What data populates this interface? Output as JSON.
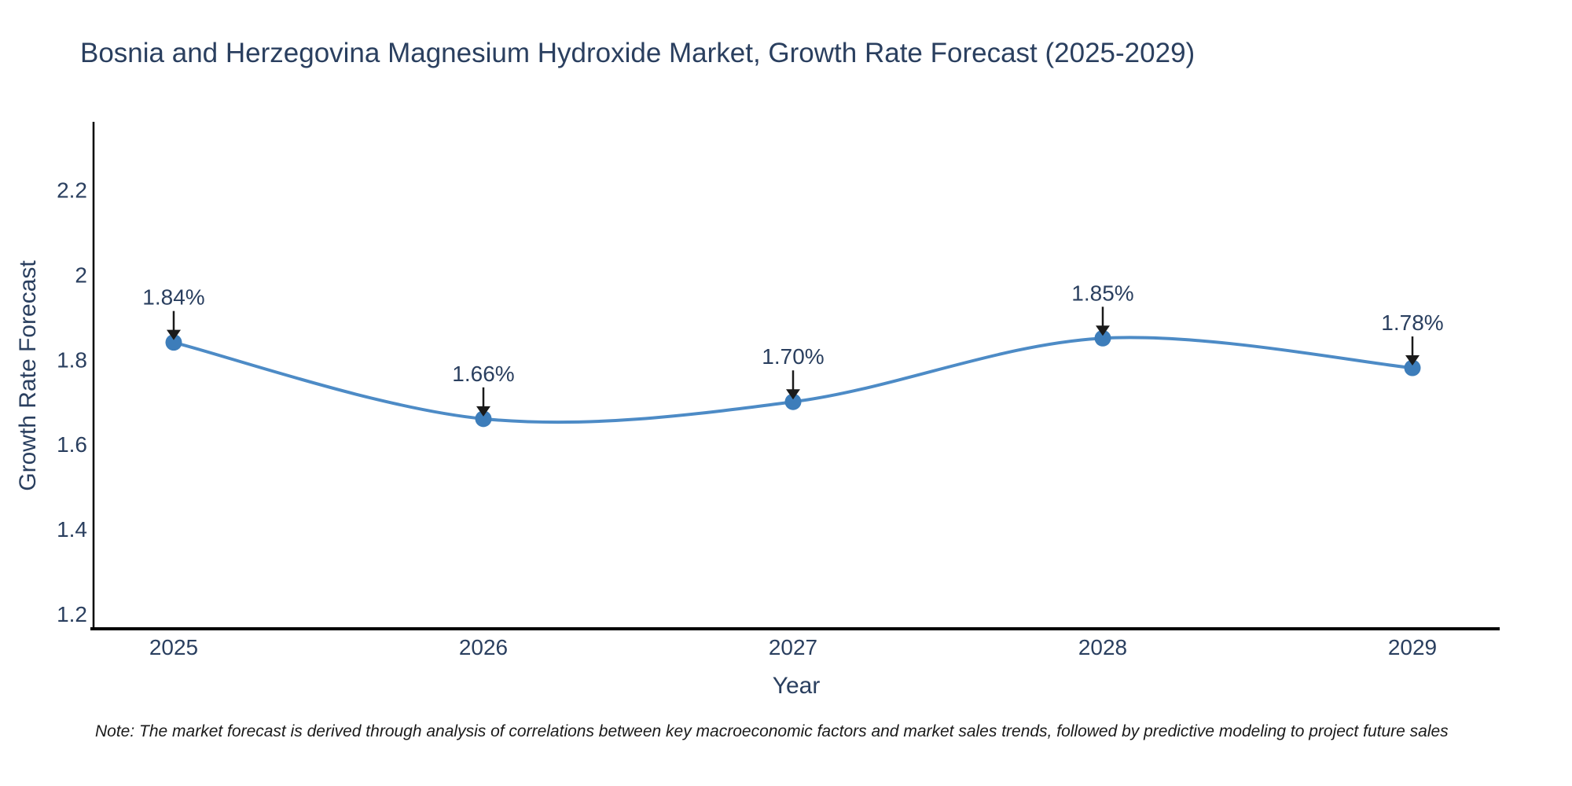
{
  "title": "Bosnia and Herzegovina Magnesium Hydroxide Market, Growth Rate Forecast (2025-2029)",
  "note": "Note: The market forecast is derived through analysis of correlations between key macroeconomic factors and market sales trends, followed by predictive modeling to project future sales",
  "chart_data": {
    "type": "line",
    "title": "Bosnia and Herzegovina Magnesium Hydroxide Market, Growth Rate Forecast (2025-2029)",
    "xlabel": "Year",
    "ylabel": "Growth Rate Forecast",
    "categories": [
      "2025",
      "2026",
      "2027",
      "2028",
      "2029"
    ],
    "series": [
      {
        "name": "Growth Rate Forecast",
        "values": [
          1.84,
          1.66,
          1.7,
          1.85,
          1.78
        ]
      }
    ],
    "point_labels": [
      "1.84%",
      "1.66%",
      "1.70%",
      "1.85%",
      "1.78%"
    ],
    "yticks": [
      1.2,
      1.4,
      1.6,
      1.8,
      2,
      2.2
    ],
    "ytick_labels": [
      "1.2",
      "1.4",
      "1.6",
      "1.8",
      "2",
      "2.2"
    ],
    "ylim": [
      1.165,
      2.36
    ],
    "line_shape": "spline",
    "grid": "off",
    "legend": "none",
    "colors": {
      "line": "#4d8bc6",
      "marker": "#3d7dba",
      "axis": "#000000",
      "text": "#2a3f5f",
      "annotation_text": "#2a3f5f",
      "arrow": "#1a1a1a",
      "background": "#ffffff"
    }
  }
}
